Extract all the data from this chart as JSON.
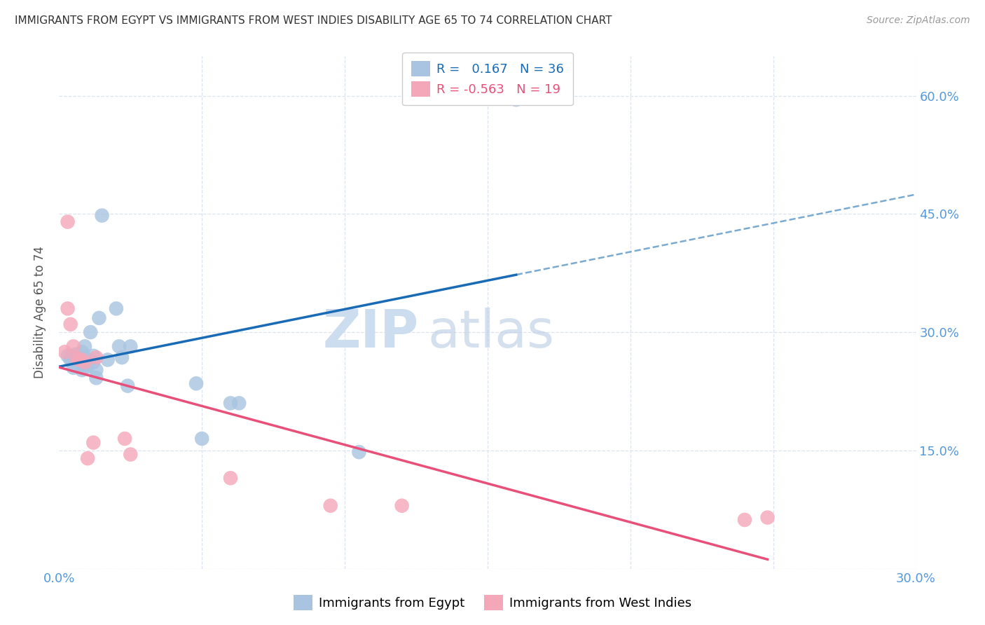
{
  "title": "IMMIGRANTS FROM EGYPT VS IMMIGRANTS FROM WEST INDIES DISABILITY AGE 65 TO 74 CORRELATION CHART",
  "source": "Source: ZipAtlas.com",
  "ylabel": "Disability Age 65 to 74",
  "xlim": [
    0.0,
    0.3
  ],
  "ylim": [
    0.0,
    0.65
  ],
  "yticks": [
    0.0,
    0.15,
    0.3,
    0.45,
    0.6
  ],
  "ytick_labels": [
    "",
    "15.0%",
    "30.0%",
    "45.0%",
    "60.0%"
  ],
  "xticks": [
    0.0,
    0.05,
    0.1,
    0.15,
    0.2,
    0.25,
    0.3
  ],
  "xtick_labels": [
    "0.0%",
    "",
    "",
    "",
    "",
    "",
    "30.0%"
  ],
  "R_egypt": 0.167,
  "N_egypt": 36,
  "R_west_indies": -0.563,
  "N_west_indies": 19,
  "egypt_color": "#a8c4e0",
  "west_indies_color": "#f4a7b9",
  "egypt_line_color": "#1a6bb5",
  "west_indies_line_color": "#e8507a",
  "dashed_line_color": "#7aaad0",
  "title_color": "#333333",
  "axis_label_color": "#5599dd",
  "watermark_color": "#ccddf0",
  "egypt_x": [
    0.003,
    0.004,
    0.004,
    0.005,
    0.005,
    0.005,
    0.006,
    0.006,
    0.007,
    0.007,
    0.008,
    0.008,
    0.008,
    0.009,
    0.009,
    0.01,
    0.01,
    0.011,
    0.012,
    0.012,
    0.013,
    0.013,
    0.014,
    0.015,
    0.017,
    0.02,
    0.021,
    0.022,
    0.024,
    0.025,
    0.048,
    0.05,
    0.06,
    0.063,
    0.105,
    0.16
  ],
  "egypt_y": [
    0.27,
    0.265,
    0.268,
    0.255,
    0.262,
    0.27,
    0.265,
    0.272,
    0.268,
    0.265,
    0.275,
    0.258,
    0.252,
    0.282,
    0.268,
    0.26,
    0.256,
    0.3,
    0.27,
    0.262,
    0.252,
    0.242,
    0.318,
    0.448,
    0.265,
    0.33,
    0.282,
    0.268,
    0.232,
    0.282,
    0.235,
    0.165,
    0.21,
    0.21,
    0.148,
    0.595
  ],
  "west_indies_x": [
    0.002,
    0.003,
    0.003,
    0.004,
    0.005,
    0.006,
    0.007,
    0.008,
    0.009,
    0.01,
    0.012,
    0.013,
    0.023,
    0.025,
    0.06,
    0.095,
    0.12,
    0.24,
    0.248
  ],
  "west_indies_y": [
    0.275,
    0.33,
    0.44,
    0.31,
    0.282,
    0.268,
    0.265,
    0.265,
    0.262,
    0.14,
    0.16,
    0.268,
    0.165,
    0.145,
    0.115,
    0.08,
    0.08,
    0.062,
    0.065
  ],
  "background_color": "#ffffff",
  "grid_color": "#dde3ee"
}
